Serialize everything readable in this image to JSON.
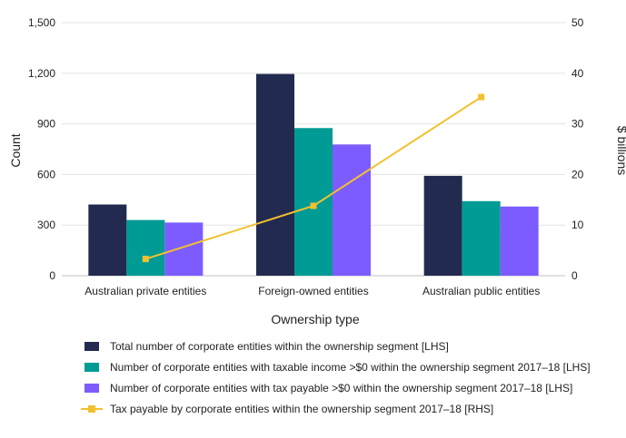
{
  "chart_data": {
    "type": "bar",
    "categories": [
      "Australian private entities",
      "Foreign-owned entities",
      "Australian public entities"
    ],
    "series": [
      {
        "name": "Total number of corporate entities within the  ownership segment [LHS]",
        "type": "bar",
        "axis": "left",
        "color": "#232a4f",
        "values": [
          422,
          1196,
          592
        ]
      },
      {
        "name": "Number of corporate entities with taxable income >$0 within the  ownership segment 2017–18 [LHS]",
        "type": "bar",
        "axis": "left",
        "color": "#009b94",
        "values": [
          330,
          875,
          442
        ]
      },
      {
        "name": "Number of corporate entities with tax payable >$0 within the  ownership segment 2017–18 [LHS]",
        "type": "bar",
        "axis": "left",
        "color": "#7c5cff",
        "values": [
          315,
          778,
          410
        ]
      },
      {
        "name": "Tax payable by corporate entities within the ownership segment 2017–18 [RHS]",
        "type": "line",
        "axis": "right",
        "color": "#f2c12e",
        "values": [
          3.3,
          13.8,
          35.3
        ]
      }
    ],
    "xlabel": "Ownership type",
    "ylabel": "Count",
    "y2label": "$ billions",
    "ylim": [
      0,
      1500
    ],
    "y2lim": [
      0,
      50
    ],
    "yticks": [
      "0",
      "300",
      "600",
      "900",
      "1,200",
      "1,500"
    ],
    "y2ticks": [
      "0",
      "10",
      "20",
      "30",
      "40",
      "50"
    ],
    "grid": "horizontal",
    "legend": "bottom"
  }
}
